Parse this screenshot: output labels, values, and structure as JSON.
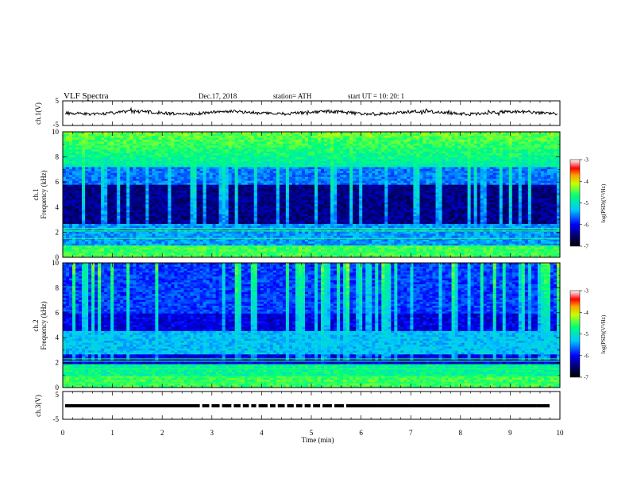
{
  "header": {
    "title": "VLF  Spectra",
    "date": "Dec.17, 2018",
    "station": "station= ATH",
    "start": "start  UT  =    10: 20: 1"
  },
  "chart_data": [
    {
      "type": "line",
      "ylabel": "ch.1(V)",
      "ylim": [
        -5,
        5
      ],
      "yticks": [
        "5",
        "-5"
      ],
      "xlim": [
        0,
        10
      ],
      "series": [
        {
          "values_note_mean": 0,
          "color": "#000000"
        }
      ]
    },
    {
      "type": "heatmap",
      "ylabel": "ch.1\nFrequency (kHz)",
      "ylim": [
        0,
        10
      ],
      "yticks": [
        "10",
        "8",
        "6",
        "4",
        "2",
        "0"
      ],
      "xlim": [
        0,
        10
      ],
      "colorbar": {
        "label": "log(PSD)(V²/Hz)",
        "range": [
          -7,
          -3
        ],
        "ticks": [
          "-3",
          "-4",
          "-5",
          "-6",
          "-7"
        ]
      }
    },
    {
      "type": "heatmap",
      "ylabel": "ch.2\nFrequency (kHz)",
      "ylim": [
        0,
        10
      ],
      "yticks": [
        "10",
        "8",
        "6",
        "4",
        "2",
        "0"
      ],
      "xlim": [
        0,
        10
      ],
      "colorbar": {
        "label": "log(PSD)(V²/Hz)",
        "range": [
          -7,
          -3
        ],
        "ticks": [
          "-3",
          "-4",
          "-5",
          "-6",
          "-7"
        ]
      }
    },
    {
      "type": "line",
      "ylabel": "ch.3(V)",
      "ylim": [
        -5,
        5
      ],
      "yticks": [
        "5",
        "-5"
      ],
      "xlabel": "Time  (min)",
      "xlim": [
        0,
        10
      ],
      "xticks": [
        "0",
        "1",
        "2",
        "3",
        "4",
        "5",
        "6",
        "7",
        "8",
        "9",
        "10"
      ],
      "series": [
        {
          "level": 0,
          "color": "#000000"
        }
      ]
    }
  ],
  "colorbar_label": "log(PSD)(V²/Hz)",
  "colors": {
    "spec_low": "#00005a",
    "spec_mid": "#00c8ff",
    "spec_high": "#ff0000"
  }
}
